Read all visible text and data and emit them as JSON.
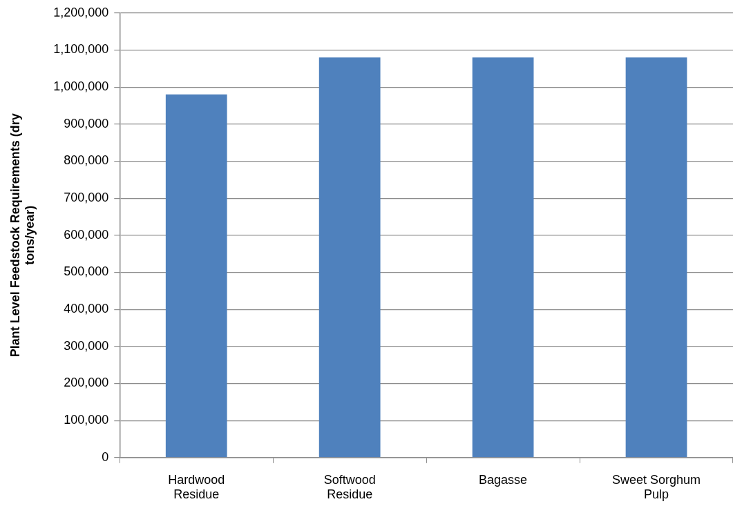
{
  "chart_data": {
    "type": "bar",
    "ylabel": "Plant Level Feedstock Requirements (dry tons/year)",
    "categories": [
      "Hardwood Residue",
      "Softwood Residue",
      "Bagasse",
      "Sweet Sorghum Pulp"
    ],
    "values": [
      980000,
      1080000,
      1080000,
      1080000
    ],
    "color": "#4f81bd",
    "ylim": [
      0,
      1200000
    ],
    "yticks": [
      0,
      {
        "value": 100000,
        "label": "100,000"
      },
      {
        "value": 200000,
        "label": "200,000"
      },
      {
        "value": 300000,
        "label": "300,000"
      },
      {
        "value": 400000,
        "label": "400,000"
      },
      {
        "value": 500000,
        "label": "500,000"
      },
      {
        "value": 600000,
        "label": "600,000"
      },
      {
        "value": 700000,
        "label": "700,000"
      },
      {
        "value": 800000,
        "label": "800,000"
      },
      {
        "value": 900000,
        "label": "900,000"
      },
      {
        "value": 1000000,
        "label": "1,000,000"
      },
      {
        "value": 1100000,
        "label": "1,100,000"
      },
      {
        "value": 1200000,
        "label": "1,200,000"
      }
    ],
    "grid": "y",
    "legend": false
  }
}
